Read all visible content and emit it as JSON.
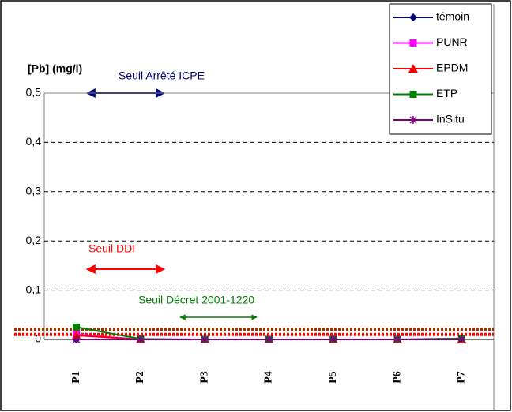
{
  "chart_data": {
    "type": "line",
    "y_label": "[Pb]  (mg/l)",
    "categories": [
      "P1",
      "P2",
      "P3",
      "P4",
      "P5",
      "P6",
      "P7"
    ],
    "series": [
      {
        "name": "témoin",
        "color": "#000080",
        "marker": "diamond",
        "values": [
          0,
          0,
          0,
          0,
          0,
          0,
          0
        ]
      },
      {
        "name": "PUNR",
        "color": "#ff00ff",
        "marker": "square",
        "values": [
          0.01,
          0,
          0,
          0,
          0,
          0,
          0
        ]
      },
      {
        "name": "EPDM",
        "color": "#ff0000",
        "marker": "triangle",
        "values": [
          0.008,
          0,
          0,
          0,
          0,
          0,
          0
        ]
      },
      {
        "name": "ETP",
        "color": "#008000",
        "marker": "square",
        "values": [
          0.025,
          0.001,
          0,
          0,
          0,
          0,
          0.002
        ]
      },
      {
        "name": "InSitu",
        "color": "#800080",
        "marker": "asterisk",
        "values": [
          0,
          0,
          0,
          0,
          0,
          0,
          0
        ]
      }
    ],
    "reference_lines": [
      {
        "value": 0.02,
        "color": "#993300"
      },
      {
        "value": 0.01,
        "color": "#ff0000"
      }
    ],
    "annotations": [
      {
        "text": "Seuil Arrêté ICPE",
        "color": "#000080"
      },
      {
        "text": "Seuil DDI",
        "color": "#ff0000"
      },
      {
        "text": "Seuil Décret  2001-1220",
        "color": "#008000"
      }
    ],
    "ylim": [
      0,
      0.5
    ],
    "yticks": [
      {
        "value": 0,
        "label": "0"
      },
      {
        "value": 0.1,
        "label": "0,1"
      },
      {
        "value": 0.2,
        "label": "0,2"
      },
      {
        "value": 0.3,
        "label": "0,3"
      },
      {
        "value": 0.4,
        "label": "0,4"
      },
      {
        "value": 0.5,
        "label": "0,5"
      }
    ],
    "grid": true,
    "legend": "top-right"
  }
}
